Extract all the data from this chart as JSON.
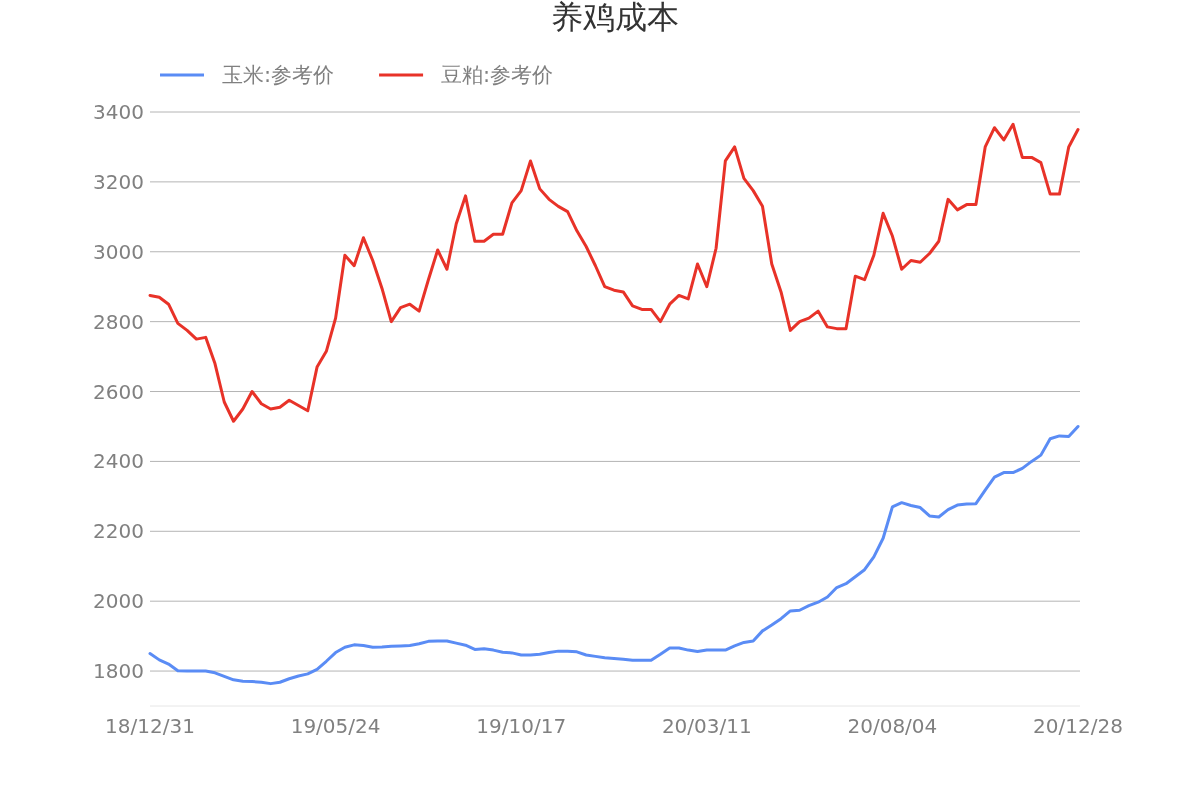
{
  "chart_data": {
    "type": "line",
    "title": "养鸡成本",
    "categories": [
      "18/12/31",
      null,
      null,
      null,
      null,
      null,
      null,
      null,
      null,
      null,
      null,
      null,
      null,
      null,
      null,
      null,
      null,
      null,
      null,
      null,
      "19/05/24",
      null,
      null,
      null,
      null,
      null,
      null,
      null,
      null,
      null,
      null,
      null,
      null,
      null,
      null,
      null,
      null,
      null,
      null,
      null,
      "19/10/17",
      null,
      null,
      null,
      null,
      null,
      null,
      null,
      null,
      null,
      null,
      null,
      null,
      null,
      null,
      null,
      null,
      null,
      null,
      null,
      "20/03/11",
      null,
      null,
      null,
      null,
      null,
      null,
      null,
      null,
      null,
      null,
      null,
      null,
      null,
      null,
      null,
      null,
      null,
      null,
      null,
      "20/08/04",
      null,
      null,
      null,
      null,
      null,
      null,
      null,
      null,
      null,
      null,
      null,
      null,
      null,
      null,
      null,
      null,
      null,
      null,
      null,
      "20/12/28"
    ],
    "series": [
      {
        "name": "玉米:参考价",
        "color": "#5a8cf5",
        "values": [
          1850,
          1832,
          1820,
          1801,
          1800,
          1800,
          1800,
          1795,
          1785,
          1775,
          1771,
          1770,
          1768,
          1764,
          1768,
          1778,
          1786,
          1792,
          1805,
          1828,
          1853,
          1868,
          1875,
          1873,
          1868,
          1869,
          1871,
          1872,
          1873,
          1878,
          1885,
          1886,
          1886,
          1880,
          1874,
          1862,
          1864,
          1860,
          1854,
          1852,
          1846,
          1846,
          1848,
          1853,
          1857,
          1857,
          1855,
          1846,
          1842,
          1838,
          1836,
          1834,
          1831,
          1831,
          1831,
          1848,
          1866,
          1866,
          1860,
          1856,
          1860,
          1860,
          1860,
          1872,
          1882,
          1886,
          1915,
          1932,
          1950,
          1972,
          1974,
          1987,
          1997,
          2012,
          2039,
          2050,
          2070,
          2090,
          2127,
          2180,
          2270,
          2282,
          2274,
          2268,
          2244,
          2241,
          2262,
          2275,
          2278,
          2279,
          2318,
          2355,
          2368,
          2368,
          2380,
          2400,
          2418,
          2465,
          2473,
          2471,
          2500
        ]
      },
      {
        "name": "豆粕:参考价",
        "color": "#e83228",
        "values": [
          2875,
          2870,
          2850,
          2795,
          2775,
          2750,
          2755,
          2680,
          2570,
          2515,
          2550,
          2600,
          2565,
          2550,
          2555,
          2575,
          2560,
          2545,
          2670,
          2715,
          2810,
          2990,
          2960,
          3040,
          2975,
          2895,
          2800,
          2840,
          2850,
          2830,
          2920,
          3005,
          2950,
          3080,
          3160,
          3030,
          3030,
          3050,
          3050,
          3140,
          3175,
          3260,
          3180,
          3150,
          3130,
          3115,
          3060,
          3015,
          2960,
          2900,
          2890,
          2885,
          2845,
          2835,
          2835,
          2800,
          2850,
          2875,
          2865,
          2965,
          2900,
          3010,
          3260,
          3300,
          3210,
          3175,
          3130,
          2965,
          2885,
          2775,
          2800,
          2810,
          2830,
          2785,
          2780,
          2780,
          2930,
          2920,
          2990,
          3110,
          3045,
          2950,
          2975,
          2970,
          2995,
          3030,
          3150,
          3120,
          3135,
          3135,
          3300,
          3355,
          3320,
          3365,
          3270,
          3270,
          3255,
          3165,
          3165,
          3300,
          3350
        ]
      }
    ],
    "ylim": [
      1700,
      3400
    ],
    "yticks": [
      1800,
      2000,
      2200,
      2400,
      2600,
      2800,
      3000,
      3200,
      3400
    ],
    "grid": "y",
    "legend": "top left",
    "marker": "none",
    "line_style": "solid"
  }
}
